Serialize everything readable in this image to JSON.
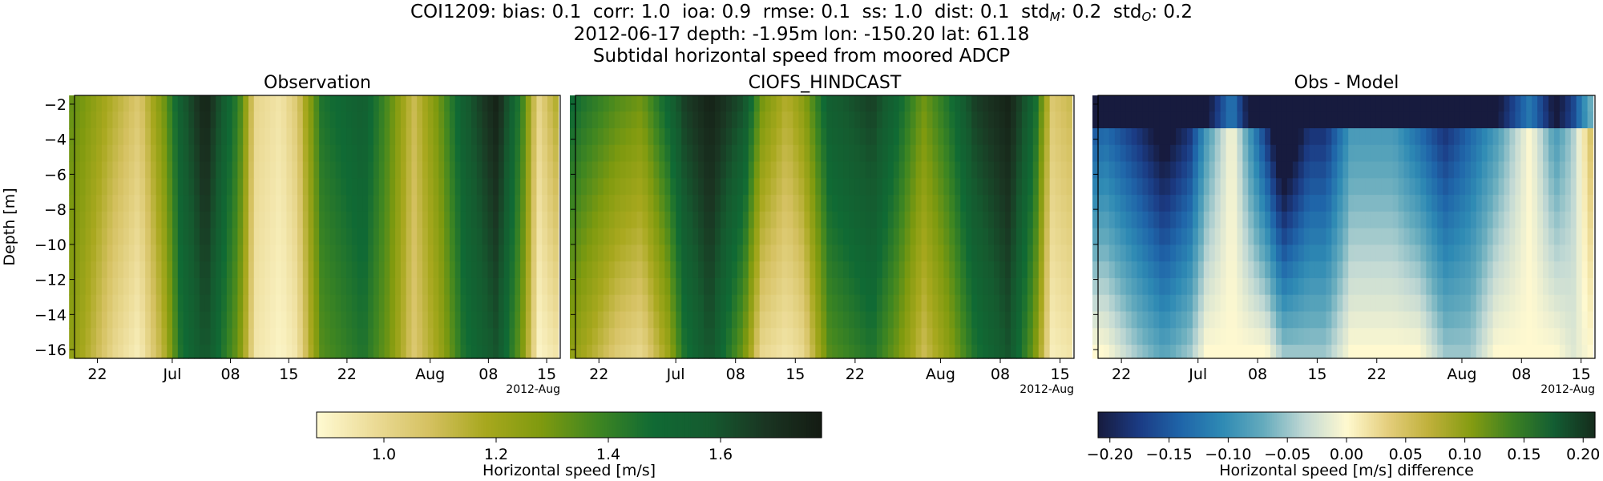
{
  "header": {
    "title_parts": [
      {
        "t": "COI1209: bias: 0.1  corr: 1.0  ioa: 0.9  rmse: 0.1  ss: 1.0  dist: 0.1  std"
      },
      {
        "t": "M",
        "sub": true
      },
      {
        "t": ": 0.2  std"
      },
      {
        "t": "O",
        "sub": true
      },
      {
        "t": ": 0.2"
      }
    ],
    "line2": "2012-06-17 depth: -1.95m lon: -150.20 lat: 61.18",
    "line3": "Subtidal horizontal speed from moored ADCP"
  },
  "colors": {
    "speed_cmap": [
      "#fffad2",
      "#ecdc98",
      "#d5c161",
      "#a8a81e",
      "#7f9a0f",
      "#3f8621",
      "#106a34",
      "#155a2f",
      "#1a3522",
      "#141b13"
    ],
    "diff_cmap": [
      "#171b3e",
      "#1b3b84",
      "#1f65a9",
      "#2e8ab4",
      "#65abbd",
      "#c2d9d4",
      "#fff9d0",
      "#e4ce7c",
      "#bfb03a",
      "#859c12",
      "#3d8122",
      "#135e33",
      "#152b1c"
    ]
  },
  "chart_data": [
    {
      "type": "heatmap",
      "title": "Observation",
      "ylabel": "Depth [m]",
      "xlabel": "",
      "ylim": [
        -16.5,
        -1.5
      ],
      "y_ticks": [
        -2,
        -4,
        -6,
        -8,
        -10,
        -12,
        -14,
        -16
      ],
      "x_ticks": [
        "22",
        "Jul",
        "08",
        "15",
        "22",
        "Aug",
        "08",
        "15"
      ],
      "x_offset_label": "2012-Aug",
      "x_range": [
        "2012-06-17",
        "2012-08-17"
      ],
      "speed_profile": {
        "dates": [
          "2012-06-17",
          "2012-06-20",
          "2012-06-24",
          "2012-06-27",
          "2012-06-30",
          "2012-07-02",
          "2012-07-05",
          "2012-07-09",
          "2012-07-11",
          "2012-07-14",
          "2012-07-16",
          "2012-07-19",
          "2012-07-24",
          "2012-07-27",
          "2012-07-30",
          "2012-08-02",
          "2012-08-05",
          "2012-08-09",
          "2012-08-12",
          "2012-08-14",
          "2012-08-16"
        ],
        "speed_top": [
          1.35,
          1.3,
          1.15,
          1.05,
          1.3,
          1.55,
          1.75,
          1.4,
          1.0,
          0.95,
          1.05,
          1.45,
          1.55,
          1.35,
          1.1,
          1.3,
          1.55,
          1.75,
          1.4,
          1.0,
          1.15
        ],
        "speed_bottom": [
          1.3,
          1.2,
          1.0,
          0.92,
          1.15,
          1.45,
          1.6,
          1.3,
          0.95,
          0.9,
          0.95,
          1.35,
          1.45,
          1.3,
          1.05,
          1.2,
          1.45,
          1.6,
          1.3,
          0.9,
          0.95
        ]
      }
    },
    {
      "type": "heatmap",
      "title": "CIOFS_HINDCAST",
      "xlabel": "",
      "ylim": [
        -16.5,
        -1.5
      ],
      "x_ticks": [
        "22",
        "Jul",
        "08",
        "15",
        "22",
        "Aug",
        "08",
        "15"
      ],
      "x_offset_label": "2012-Aug",
      "x_range": [
        "2012-06-17",
        "2012-08-17"
      ],
      "speed_profile": {
        "dates": [
          "2012-06-17",
          "2012-06-20",
          "2012-06-24",
          "2012-06-27",
          "2012-06-30",
          "2012-07-02",
          "2012-07-05",
          "2012-07-09",
          "2012-07-11",
          "2012-07-14",
          "2012-07-16",
          "2012-07-19",
          "2012-07-24",
          "2012-07-27",
          "2012-07-30",
          "2012-08-02",
          "2012-08-05",
          "2012-08-09",
          "2012-08-12",
          "2012-08-14",
          "2012-08-16"
        ],
        "speed_top": [
          1.55,
          1.45,
          1.35,
          1.3,
          1.5,
          1.65,
          1.75,
          1.6,
          1.3,
          1.15,
          1.25,
          1.55,
          1.65,
          1.5,
          1.3,
          1.45,
          1.65,
          1.75,
          1.5,
          1.05,
          1.1
        ],
        "speed_bottom": [
          1.3,
          1.2,
          1.05,
          1.0,
          1.2,
          1.45,
          1.6,
          1.3,
          1.0,
          0.95,
          1.0,
          1.35,
          1.45,
          1.3,
          1.1,
          1.25,
          1.45,
          1.6,
          1.3,
          0.92,
          0.95
        ]
      }
    },
    {
      "type": "heatmap",
      "title": "Obs - Model",
      "xlabel": "",
      "ylim": [
        -16.5,
        -1.5
      ],
      "x_ticks": [
        "22",
        "Jul",
        "08",
        "15",
        "22",
        "Aug",
        "08",
        "15"
      ],
      "x_offset_label": "2012-Aug",
      "x_range": [
        "2012-06-17",
        "2012-08-17"
      ]
    }
  ],
  "colorbars": [
    {
      "label": "Horizontal speed [m/s]",
      "range": [
        0.88,
        1.78
      ],
      "ticks": [
        1.0,
        1.2,
        1.4,
        1.6
      ],
      "tick_labels": [
        "1.0",
        "1.2",
        "1.4",
        "1.6"
      ]
    },
    {
      "label": "Horizontal speed [m/s] difference",
      "range": [
        -0.21,
        0.21
      ],
      "ticks": [
        -0.2,
        -0.15,
        -0.1,
        -0.05,
        0.0,
        0.05,
        0.1,
        0.15,
        0.2
      ],
      "tick_labels": [
        "−0.20",
        "−0.15",
        "−0.10",
        "−0.05",
        "0.00",
        "0.05",
        "0.10",
        "0.15",
        "0.20"
      ]
    }
  ]
}
